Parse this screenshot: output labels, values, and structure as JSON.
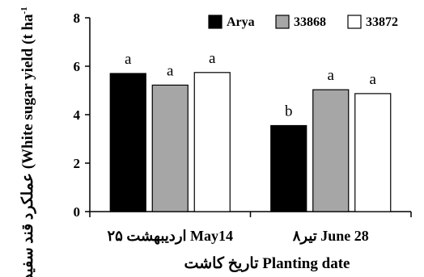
{
  "chart_data": {
    "type": "bar",
    "categories": [
      "۲۵ اردیبهشت May14",
      "۸تیر June 28"
    ],
    "series": [
      {
        "name": "Arya",
        "color": "#000000",
        "values": [
          5.7,
          3.55
        ],
        "letters": [
          "a",
          "b"
        ]
      },
      {
        "name": "33868",
        "color": "#a6a6a6",
        "values": [
          5.22,
          5.03
        ],
        "letters": [
          "a",
          "a"
        ]
      },
      {
        "name": "33872",
        "color": "#ffffff",
        "values": [
          5.74,
          4.87
        ],
        "letters": [
          "a",
          "a"
        ]
      }
    ],
    "xlabel": "تاریخ کاشت   Planting date",
    "ylabel": "عملکرد قند سفید (White sugar yield (t ha",
    "ylabel_sup": "-1",
    "ylim": [
      0,
      8
    ],
    "yticks": [
      0,
      2,
      4,
      6,
      8
    ],
    "grid": false,
    "legend_position": "top"
  }
}
